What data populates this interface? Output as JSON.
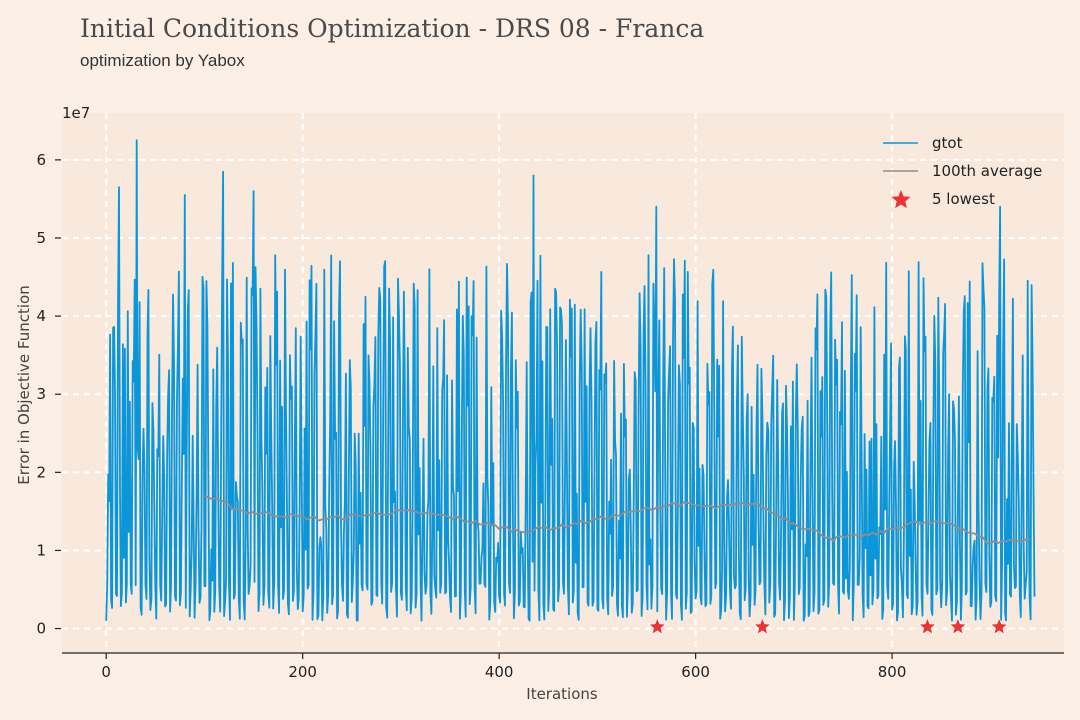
{
  "header": {
    "title": "Initial Conditions Optimization - DRS 08 - Franca",
    "subtitle": "optimization by Yabox"
  },
  "colors": {
    "background": "#fcf0e6",
    "plot_background": "#f9e8dc",
    "grid": "#ffffff",
    "gtot": "#0a96d8",
    "average": "#8e8e8e",
    "lowest": "#ee3333"
  },
  "chart_data": {
    "type": "line",
    "xlabel": "Iterations",
    "ylabel": "Error in Objective Function",
    "y_multiplier": "1e7",
    "xlim": [
      -45,
      975
    ],
    "ylim": [
      -0.3,
      6.6
    ],
    "x_ticks": [
      "0",
      "200",
      "400",
      "600",
      "800"
    ],
    "y_ticks": [
      "0",
      "1",
      "2",
      "3",
      "4",
      "5",
      "6"
    ],
    "grid": true,
    "legend_position": "top-right",
    "series": [
      {
        "name": "gtot",
        "x_start": 0,
        "x_end": 945,
        "approx_range": [
          0.05,
          6.25
        ],
        "notable_peaks": [
          {
            "x": 31,
            "y": 6.25
          },
          {
            "x": 13,
            "y": 5.65
          },
          {
            "x": 119,
            "y": 5.85
          },
          {
            "x": 435,
            "y": 5.8
          },
          {
            "x": 910,
            "y": 5.4
          },
          {
            "x": 560,
            "y": 5.4
          },
          {
            "x": 150,
            "y": 5.6
          },
          {
            "x": 80,
            "y": 5.55
          }
        ]
      },
      {
        "name": "100th average",
        "x": [
          100,
          140,
          180,
          220,
          260,
          300,
          340,
          380,
          420,
          460,
          500,
          540,
          580,
          620,
          660,
          700,
          740,
          780,
          820,
          860,
          900,
          940
        ],
        "values": [
          1.7,
          1.5,
          1.45,
          1.4,
          1.45,
          1.5,
          1.45,
          1.35,
          1.25,
          1.3,
          1.4,
          1.5,
          1.6,
          1.55,
          1.6,
          1.35,
          1.15,
          1.2,
          1.35,
          1.35,
          1.1,
          1.15
        ]
      },
      {
        "name": "5 lowest",
        "x": [
          561,
          668,
          836,
          867,
          909
        ],
        "values": [
          0.02,
          0.02,
          0.02,
          0.02,
          0.02
        ]
      }
    ]
  }
}
